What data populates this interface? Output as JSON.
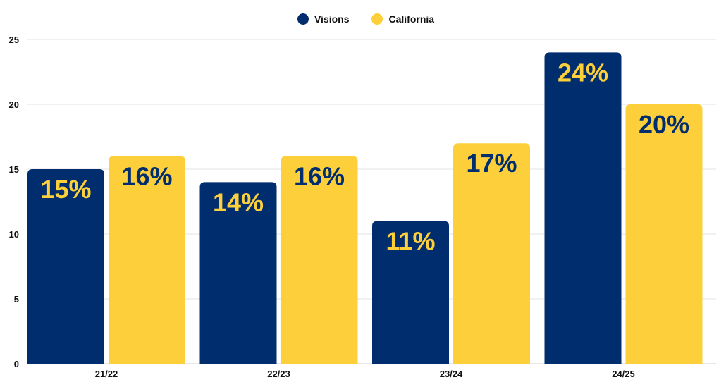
{
  "chart_data": {
    "type": "bar",
    "title": "",
    "xlabel": "",
    "ylabel": "",
    "categories": [
      "21/22",
      "22/23",
      "23/24",
      "24/25"
    ],
    "series": [
      {
        "name": "Visions",
        "values": [
          15,
          14,
          11,
          24
        ],
        "labels": [
          "15%",
          "14%",
          "11%",
          "24%"
        ],
        "color": "#002d6e",
        "label_color": "#fdd03b"
      },
      {
        "name": "California",
        "values": [
          16,
          16,
          17,
          20
        ],
        "labels": [
          "16%",
          "16%",
          "17%",
          "20%"
        ],
        "color": "#fdd03b",
        "label_color": "#002d6e"
      }
    ],
    "ylim": [
      0,
      25
    ],
    "yticks": [
      0,
      5,
      10,
      15,
      20,
      25
    ],
    "grid": true,
    "legend": "top-center"
  }
}
